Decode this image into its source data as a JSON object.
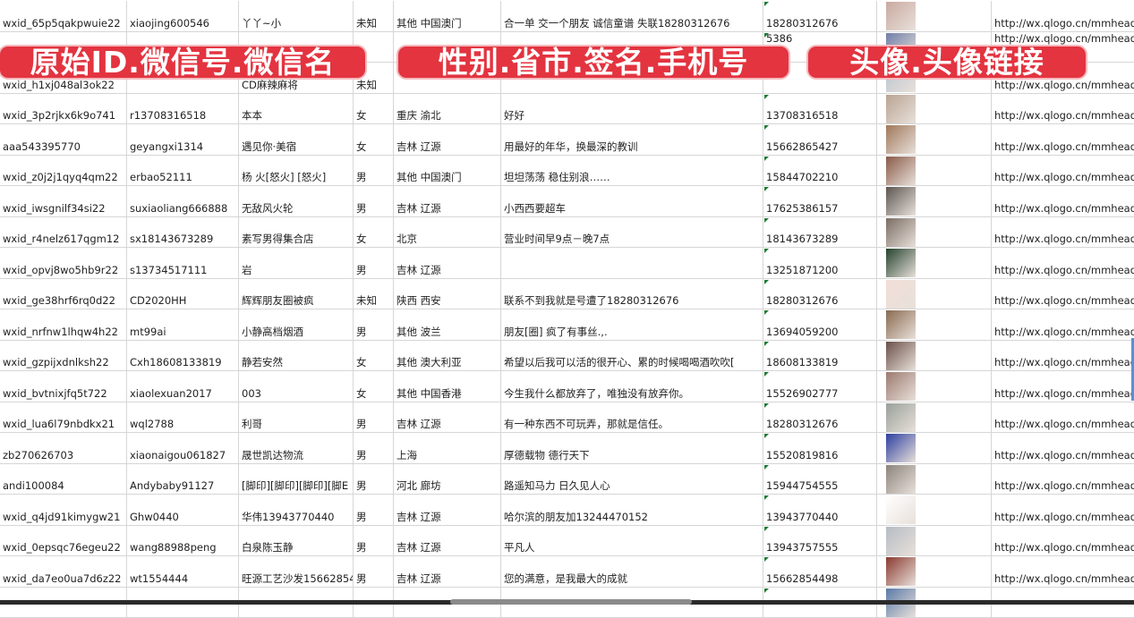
{
  "banners": [
    "原始ID.微信号.微信名",
    "性别.省市.签名.手机号",
    "头像.头像链接"
  ],
  "rows": [
    {
      "id": "wxid_65p5qakpwuie22",
      "wechat": "xiaojing600546",
      "name": "丫丫~小",
      "sex": "未知",
      "region": "其他 中国澳门",
      "signature": "合一单 交一个朋友 诚信童谱 失联18280312676",
      "phone": "18280312676",
      "avatar_color": "#c9a9a0",
      "link": "http://wx.qlogo.cn/mmhead"
    },
    {
      "id": "",
      "wechat": "",
      "name": "",
      "sex": "",
      "region": "",
      "signature": "",
      "phone": "5386",
      "avatar_color": "#6f7fa8",
      "link": "http://wx.qlogo.cn/mmhead"
    },
    {
      "id": "wxid_h1xj048al3ok22",
      "wechat": "",
      "name": "CD麻辣麻将",
      "sex": "未知",
      "region": "",
      "signature": "",
      "phone": "",
      "avatar_color": "#b8c3d0",
      "link": "http://wx.qlogo.cn/mmhead"
    },
    {
      "id": "wxid_3p2rjkx6k9o741",
      "wechat": "r13708316518",
      "name": "本本",
      "sex": "女",
      "region": "重庆 渝北",
      "signature": "好好",
      "phone": "13708316518",
      "avatar_color": "#b9a493",
      "link": "http://wx.qlogo.cn/mmhead"
    },
    {
      "id": "aaa543395770",
      "wechat": "geyangxi1314",
      "name": "遇见你·美宿",
      "sex": "女",
      "region": "吉林 辽源",
      "signature": "用最好的年华，换最深的教训",
      "phone": "15662865427",
      "avatar_color": "#a0785a",
      "link": "http://wx.qlogo.cn/mmhead"
    },
    {
      "id": "wxid_z0j2j1qyq4qm22",
      "wechat": "erbao52111",
      "name": "杨 火[怒火] [怒火]",
      "sex": "男",
      "region": "其他 中国澳门",
      "signature": "坦坦荡荡 稳住别浪……",
      "phone": "15844702210",
      "avatar_color": "#8a5a48",
      "link": "http://wx.qlogo.cn/mmhead"
    },
    {
      "id": "wxid_iwsgnilf34si22",
      "wechat": "suxiaoliang666888",
      "name": "无敌风火轮",
      "sex": "男",
      "region": "吉林 辽源",
      "signature": "小西西要超车",
      "phone": "17625386157",
      "avatar_color": "#5d5550",
      "link": "http://wx.qlogo.cn/mmhead"
    },
    {
      "id": "wxid_r4nelz617qgm12",
      "wechat": "sx18143673289",
      "name": "素写男得集合店",
      "sex": "女",
      "region": "北京",
      "signature": "营业时间早9点－晚7点",
      "phone": "18143673289",
      "avatar_color": "#7a6d64",
      "link": "http://wx.qlogo.cn/mmhead"
    },
    {
      "id": "wxid_opvj8wo5hb9r22",
      "wechat": "s13734517111",
      "name": "岩",
      "sex": "男",
      "region": "吉林 辽源",
      "signature": "",
      "phone": "13251871200",
      "avatar_color": "#25422e",
      "link": "http://wx.qlogo.cn/mmhead"
    },
    {
      "id": "wxid_ge38hrf6rq0d22",
      "wechat": "CD2020HH",
      "name": "辉辉朋友圈被疯",
      "sex": "未知",
      "region": "陕西 西安",
      "signature": "联系不到我就是号遭了18280312676",
      "phone": "18280312676",
      "avatar_color": "#f2ded8",
      "link": "http://wx.qlogo.cn/mmhead"
    },
    {
      "id": "wxid_nrfnw1lhqw4h22",
      "wechat": "mt99ai",
      "name": "小静高档烟酒",
      "sex": "男",
      "region": "其他 波兰",
      "signature": "朋友[圈] 疯了有事丝.,.",
      "phone": "13694059200",
      "avatar_color": "#8a6a50",
      "link": "http://wx.qlogo.cn/mmhead"
    },
    {
      "id": "wxid_gzpijxdnlksh22",
      "wechat": "Cxh18608133819",
      "name": "静若安然",
      "sex": "女",
      "region": "其他 澳大利亚",
      "signature": "希望以后我可以活的很开心、累的时候喝喝酒吹吹[",
      "phone": "18608133819",
      "avatar_color": "#6b5048",
      "link": "http://wx.qlogo.cn/mmhead"
    },
    {
      "id": "wxid_bvtnixjfq5t722",
      "wechat": "xiaolexuan2017",
      "name": "003",
      "sex": "女",
      "region": "其他 中国香港",
      "signature": "今生我什么都放弃了，唯独没有放弃你。",
      "phone": "15526902777",
      "avatar_color": "#9c7a70",
      "link": "http://wx.qlogo.cn/mmhead"
    },
    {
      "id": "wxid_lua6l79nbdkx21",
      "wechat": "wql2788",
      "name": "利哥",
      "sex": "男",
      "region": "吉林 辽源",
      "signature": "有一种东西不可玩弄，那就是信任。",
      "phone": "18280312676",
      "avatar_color": "#9aa09a",
      "link": "http://wx.qlogo.cn/mmhead"
    },
    {
      "id": "zb270626703",
      "wechat": "xiaonaigou061827",
      "name": "晟世凯达物流",
      "sex": "男",
      "region": "上海",
      "signature": "厚德载物 德行天下",
      "phone": "15520819816",
      "avatar_color": "#2c3fa0",
      "link": "http://wx.qlogo.cn/mmhead"
    },
    {
      "id": "andi100084",
      "wechat": "Andybaby91127",
      "name": "[脚印][脚印][脚印][脚E",
      "sex": "男",
      "region": "河北 廊坊",
      "signature": "路遥知马力 日久见人心",
      "phone": "15944754555",
      "avatar_color": "#8b847c",
      "link": "http://wx.qlogo.cn/mmhead"
    },
    {
      "id": "wxid_q4jd91kimygw21",
      "wechat": "Ghw0440",
      "name": "华伟13943770440",
      "sex": "男",
      "region": "吉林 辽源",
      "signature": "哈尔滨的朋友加13244470152",
      "phone": "13943770440",
      "avatar_color": "#ffffff",
      "link": "http://wx.qlogo.cn/mmhead"
    },
    {
      "id": "wxid_0epsqc76egeu22",
      "wechat": "wang88988peng",
      "name": "白泉陈玉静",
      "sex": "男",
      "region": "吉林 辽源",
      "signature": "平凡人",
      "phone": "13943757555",
      "avatar_color": "#b6bcc4",
      "link": "http://wx.qlogo.cn/mmhead"
    },
    {
      "id": "wxid_da7eo0ua7d6z22",
      "wechat": "wt1554444",
      "name": "旺源工艺沙发15662854",
      "sex": "男",
      "region": "吉林 辽源",
      "signature": "您的满意，是我最大的成就",
      "phone": "15662854498",
      "avatar_color": "#8a3a30",
      "link": "http://wx.qlogo.cn/mmhead"
    },
    {
      "id": "",
      "wechat": "",
      "name": "",
      "sex": "",
      "region": "",
      "signature": "",
      "phone": "",
      "avatar_color": "#5a7aa8",
      "link": ""
    }
  ]
}
